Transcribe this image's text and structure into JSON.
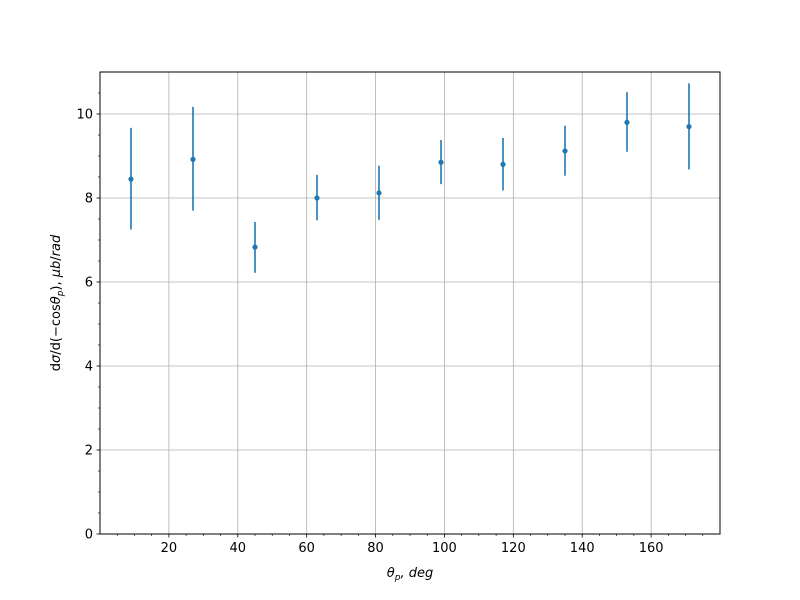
{
  "chart_data": {
    "type": "scatter",
    "title": "",
    "xlabel": "θp, deg",
    "ylabel": "dσ/d(−cosθp), μb/rad",
    "xlim": [
      0,
      180
    ],
    "ylim": [
      0,
      11
    ],
    "grid": true,
    "color": "#1f77b4",
    "xticks": [
      20,
      40,
      60,
      80,
      100,
      120,
      140,
      160
    ],
    "yticks": [
      0,
      2,
      4,
      6,
      8,
      10
    ],
    "series": [
      {
        "x": [
          9,
          27,
          45,
          63,
          81,
          99,
          117,
          135,
          153,
          171
        ],
        "y": [
          8.45,
          8.92,
          6.83,
          8.0,
          8.12,
          8.85,
          8.8,
          9.12,
          9.8,
          9.7
        ],
        "y_low": [
          7.25,
          7.7,
          6.22,
          7.47,
          7.48,
          8.33,
          8.18,
          8.53,
          9.1,
          8.68
        ],
        "y_high": [
          9.67,
          10.17,
          7.43,
          8.55,
          8.77,
          9.38,
          9.43,
          9.72,
          10.52,
          10.73
        ]
      }
    ]
  }
}
